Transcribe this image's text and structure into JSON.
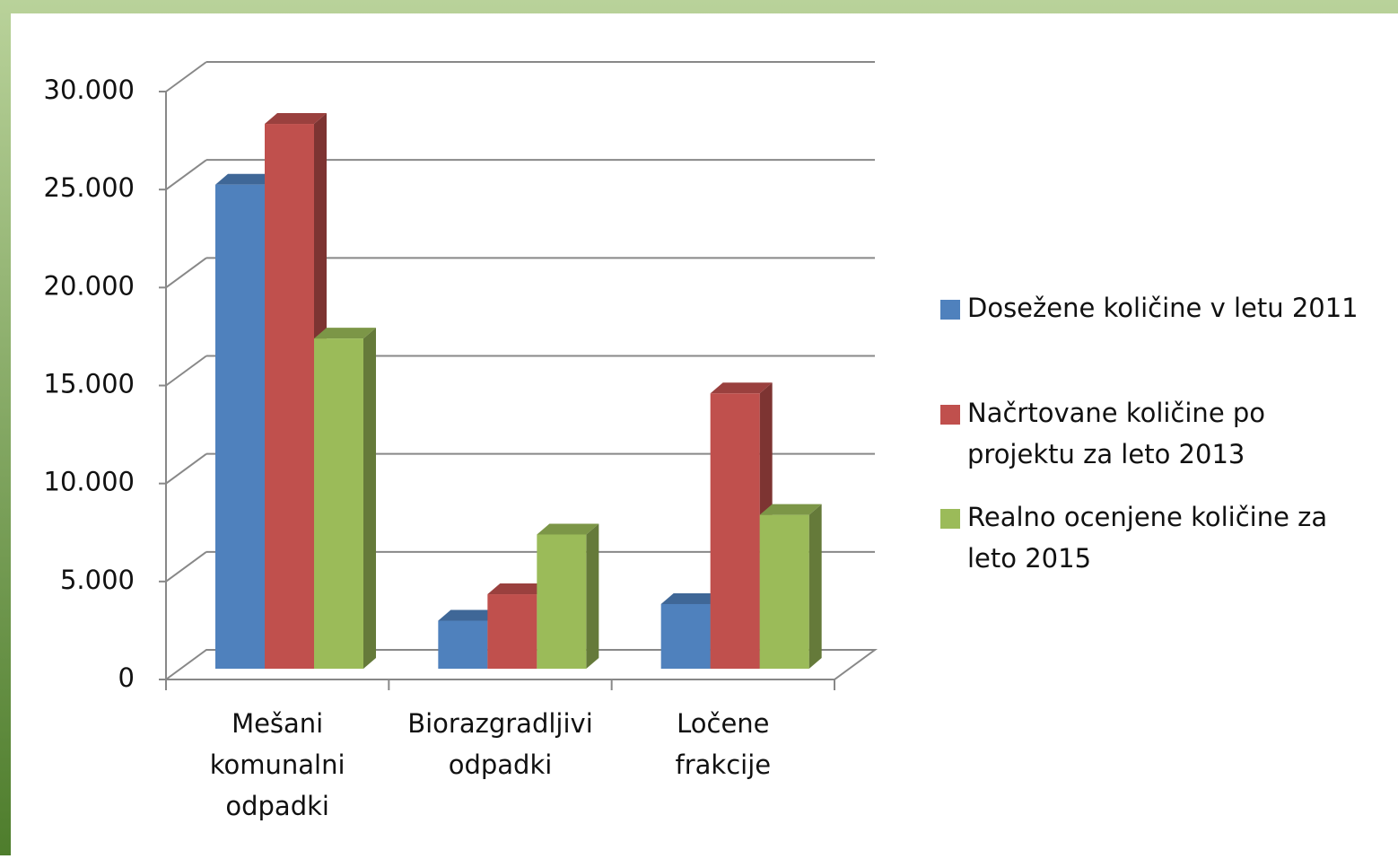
{
  "chart_data": {
    "type": "bar3d",
    "categories": [
      "Mešani komunalni odpadki",
      "Biorazgradljivi odpadki",
      "Ločene frakcije"
    ],
    "series": [
      {
        "name": "Dosežene količine v letu 2011",
        "color": "#4f81bd",
        "values": [
          24700,
          2450,
          3300
        ]
      },
      {
        "name": "Načrtovane količine po projektu za leto 2013",
        "color": "#c0504d",
        "values": [
          27800,
          3800,
          14050
        ]
      },
      {
        "name": "Realno ocenjene količine za leto 2015",
        "color": "#9bbb59",
        "values": [
          16850,
          6850,
          7850
        ]
      }
    ],
    "ylim": [
      0,
      30000
    ],
    "yticks": [
      0,
      {
        "value": 5000,
        "label": "5.000"
      },
      {
        "value": 10000,
        "label": "10.000"
      },
      {
        "value": 15000,
        "label": "15.000"
      },
      {
        "value": 20000,
        "label": "20.000"
      },
      {
        "value": 25000,
        "label": "25.000"
      },
      {
        "value": 30000,
        "label": "30.000"
      }
    ],
    "grid": true,
    "legend": "right"
  }
}
